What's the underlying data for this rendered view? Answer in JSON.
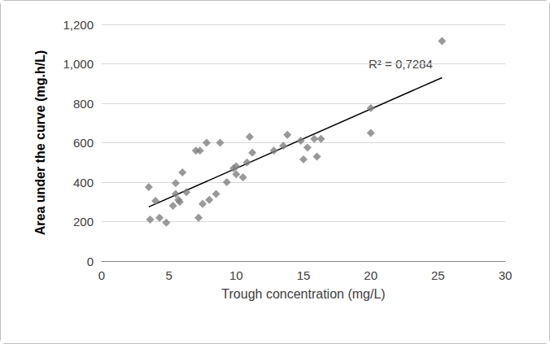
{
  "chart_data": {
    "type": "scatter",
    "x_label": "Trough concentration (mg/L)",
    "y_label": "Area under the curve (mg.h/L)",
    "x": [
      3.5,
      3.6,
      4.0,
      4.3,
      4.8,
      5.3,
      5.5,
      5.5,
      5.7,
      5.8,
      6.0,
      6.3,
      7.0,
      7.2,
      7.3,
      7.5,
      7.8,
      8.0,
      8.5,
      8.8,
      9.3,
      9.8,
      10.0,
      10.0,
      10.5,
      10.8,
      11.0,
      11.2,
      12.8,
      13.5,
      13.8,
      14.8,
      15.0,
      15.3,
      15.8,
      16.0,
      16.3,
      20.0,
      20.0,
      25.3
    ],
    "values": [
      375,
      210,
      305,
      220,
      195,
      280,
      340,
      395,
      310,
      300,
      450,
      350,
      560,
      220,
      560,
      290,
      600,
      310,
      340,
      600,
      400,
      470,
      440,
      480,
      425,
      500,
      630,
      550,
      560,
      585,
      640,
      610,
      515,
      575,
      620,
      530,
      620,
      775,
      650,
      1115
    ],
    "color": "#808080",
    "marker": "diamond",
    "trendline": {
      "x": [
        3.5,
        25.3
      ],
      "values": [
        275,
        930
      ],
      "color": "#000000",
      "line_style": "solid"
    },
    "annotation": "R² = 0,7284",
    "xlim": [
      0,
      30
    ],
    "xticks": [
      0,
      5,
      10,
      15,
      20,
      25,
      30
    ],
    "ylim": [
      0,
      1200
    ],
    "yticks": [
      0,
      200,
      400,
      600,
      800,
      1000,
      1200
    ],
    "grid": true
  }
}
